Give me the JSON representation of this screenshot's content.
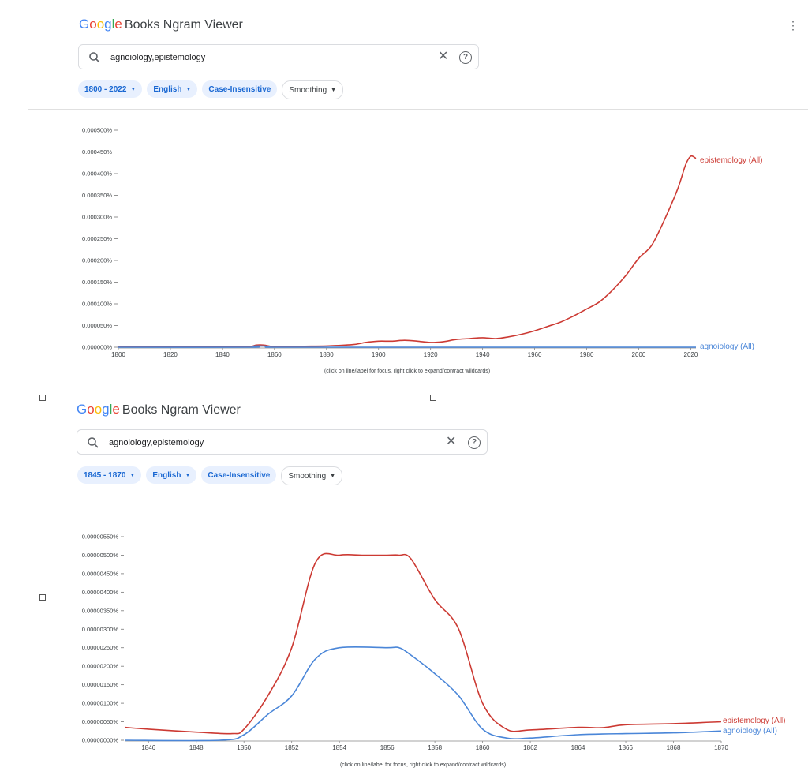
{
  "app": {
    "logo_letters": [
      "G",
      "o",
      "o",
      "g",
      "l",
      "e"
    ],
    "logo_rest": "Books Ngram Viewer",
    "menu_icon": "kebab-icon"
  },
  "panels": [
    {
      "query": "agnoiology,epistemology",
      "chips": {
        "year_range": "1800 - 2022",
        "corpus": "English",
        "case": "Case-Insensitive",
        "smoothing": "Smoothing"
      },
      "caption": "(click on line/label for focus, right click to expand/contract wildcards)"
    },
    {
      "query": "agnoiology,epistemology",
      "chips": {
        "year_range": "1845 - 1870",
        "corpus": "English",
        "case": "Case-Insensitive",
        "smoothing": "Smoothing"
      },
      "caption": "(click on line/label for focus, right click to expand/contract wildcards)"
    }
  ],
  "colors": {
    "epistemology": "#cc3a33",
    "agnoiology": "#4a86d8"
  },
  "chart_data": [
    {
      "type": "line",
      "title": "",
      "xlabel": "",
      "ylabel": "",
      "xlim": [
        1800,
        2022
      ],
      "ylim": [
        0,
        0.0005
      ],
      "x_ticks": [
        1800,
        1820,
        1840,
        1860,
        1880,
        1900,
        1920,
        1940,
        1960,
        1980,
        2000,
        2020
      ],
      "y_ticks": [
        "0.000000%",
        "0.000050%",
        "0.000100%",
        "0.000150%",
        "0.000200%",
        "0.000250%",
        "0.000300%",
        "0.000350%",
        "0.000400%",
        "0.000450%",
        "0.000500%"
      ],
      "y_tick_values": [
        0,
        5e-05,
        0.0001,
        0.00015,
        0.0002,
        0.00025,
        0.0003,
        0.00035,
        0.0004,
        0.00045,
        0.0005
      ],
      "series": [
        {
          "name": "epistemology (All)",
          "color": "#cc3a33",
          "x": [
            1800,
            1820,
            1840,
            1850,
            1853,
            1856,
            1860,
            1870,
            1880,
            1890,
            1895,
            1900,
            1905,
            1910,
            1915,
            1920,
            1925,
            1930,
            1935,
            1940,
            1945,
            1950,
            1955,
            1960,
            1965,
            1970,
            1975,
            1980,
            1985,
            1990,
            1995,
            2000,
            2005,
            2010,
            2015,
            2018,
            2020,
            2022
          ],
          "y": [
            5e-07,
            5e-07,
            5e-07,
            1e-06,
            5e-06,
            5e-06,
            1e-06,
            2e-06,
            3e-06,
            6e-06,
            1.1e-05,
            1.4e-05,
            1.4e-05,
            1.6e-05,
            1.4e-05,
            1.1e-05,
            1.3e-05,
            1.8e-05,
            2e-05,
            2.2e-05,
            2e-05,
            2.4e-05,
            3e-05,
            3.8e-05,
            4.8e-05,
            5.8e-05,
            7.2e-05,
            8.8e-05,
            0.000105,
            0.000132,
            0.000165,
            0.000205,
            0.000235,
            0.000295,
            0.000365,
            0.00042,
            0.00044,
            0.000435
          ]
        },
        {
          "name": "agnoiology (All)",
          "color": "#4a86d8",
          "x": [
            1800,
            1850,
            1852,
            1856,
            1858,
            1860,
            1900,
            1950,
            2000,
            2022
          ],
          "y": [
            0,
            0,
            2.5e-06,
            2.5e-06,
            1.5e-06,
            0,
            0,
            0,
            0,
            0
          ]
        }
      ],
      "legend": "labels at line ends (right)"
    },
    {
      "type": "line",
      "title": "",
      "xlabel": "",
      "ylabel": "",
      "xlim": [
        1845,
        1870
      ],
      "ylim": [
        0,
        5.5e-06
      ],
      "x_ticks": [
        1846,
        1848,
        1850,
        1852,
        1854,
        1856,
        1858,
        1860,
        1862,
        1864,
        1866,
        1868,
        1870
      ],
      "y_ticks": [
        "0.00000000%",
        "0.00000050%",
        "0.00000100%",
        "0.00000150%",
        "0.00000200%",
        "0.00000250%",
        "0.00000300%",
        "0.00000350%",
        "0.00000400%",
        "0.00000450%",
        "0.00000500%",
        "0.00000550%"
      ],
      "y_tick_values": [
        0,
        5e-07,
        1e-06,
        1.5e-06,
        2e-06,
        2.5e-06,
        3e-06,
        3.5e-06,
        4e-06,
        4.5e-06,
        5e-06,
        5.5e-06
      ],
      "series": [
        {
          "name": "epistemology (All)",
          "color": "#cc3a33",
          "x": [
            1845,
            1846,
            1848,
            1849.5,
            1850,
            1851,
            1852,
            1853,
            1854,
            1855,
            1856,
            1856.5,
            1857,
            1858,
            1859,
            1860,
            1861,
            1862,
            1864,
            1865,
            1866,
            1868,
            1870
          ],
          "y": [
            3.5e-07,
            3e-07,
            2.2e-07,
            1.8e-07,
            3e-07,
            1.2e-06,
            2.5e-06,
            4.8e-06,
            5e-06,
            5e-06,
            5e-06,
            5e-06,
            4.9e-06,
            3.8e-06,
            3e-06,
            1e-06,
            3e-07,
            2.8e-07,
            3.5e-07,
            3.4e-07,
            4.2e-07,
            4.5e-07,
            5e-07
          ]
        },
        {
          "name": "agnoiology (All)",
          "color": "#4a86d8",
          "x": [
            1845,
            1849,
            1850,
            1851,
            1852,
            1853,
            1854,
            1856,
            1856.5,
            1857,
            1858,
            1859,
            1860,
            1861,
            1862,
            1864,
            1866,
            1868,
            1870
          ],
          "y": [
            0,
            0,
            1.5e-07,
            7e-07,
            1.2e-06,
            2.2e-06,
            2.5e-06,
            2.5e-06,
            2.5e-06,
            2.3e-06,
            1.8e-06,
            1.2e-06,
            3e-07,
            6e-08,
            6e-08,
            1.5e-07,
            1.8e-07,
            2e-07,
            2.5e-07
          ]
        }
      ],
      "legend": "labels at line ends (right)"
    }
  ]
}
